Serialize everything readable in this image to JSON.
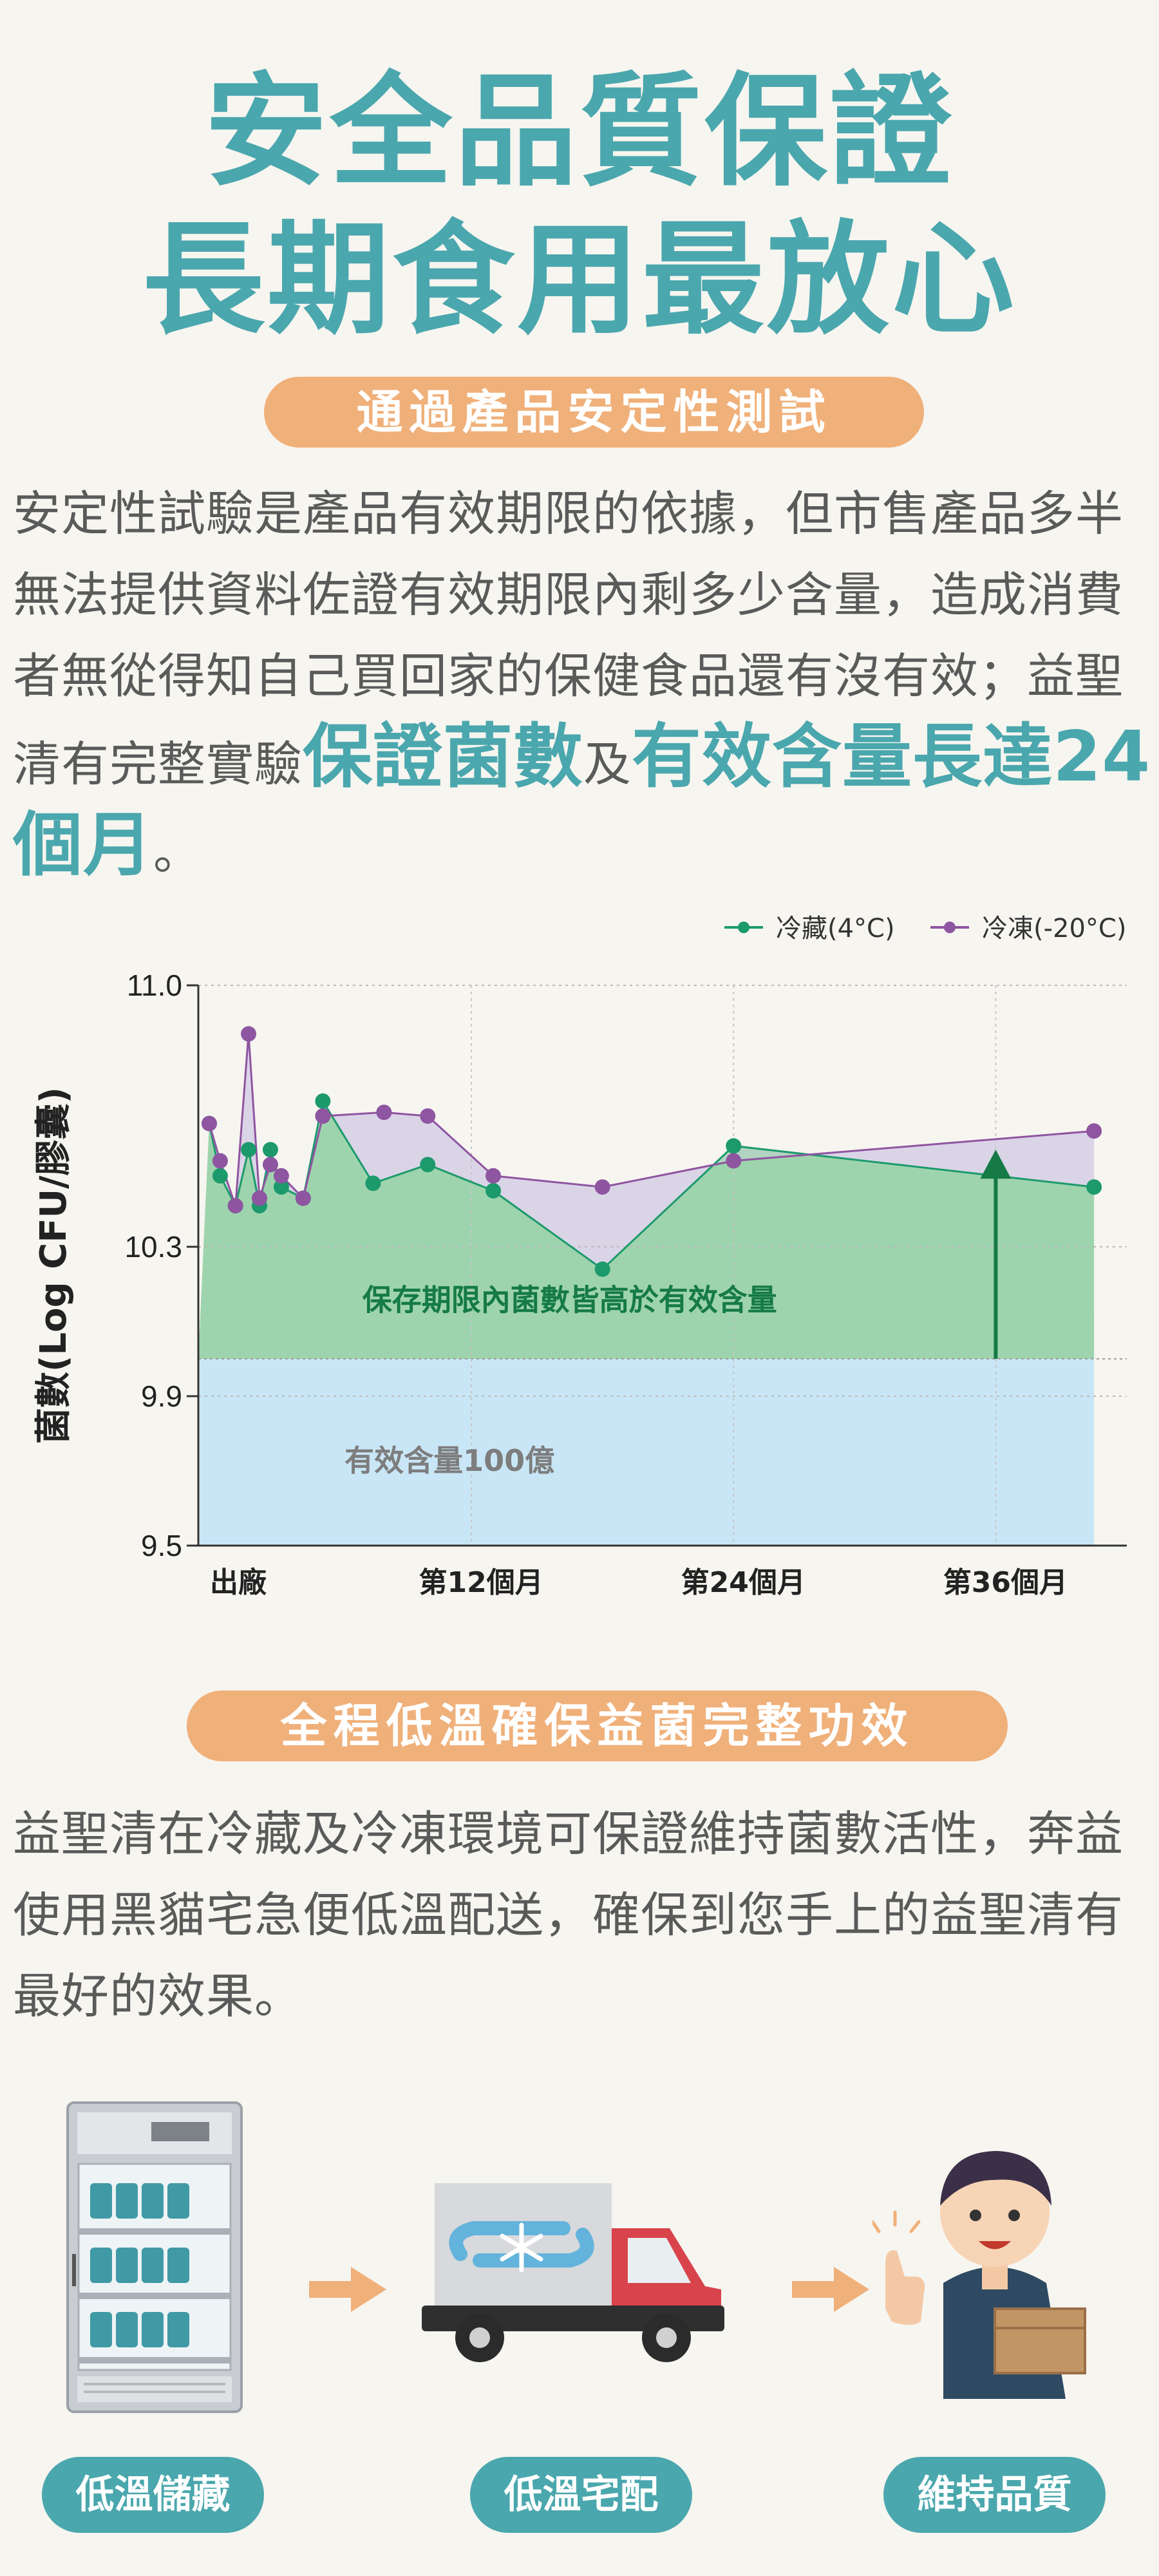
{
  "header": {
    "title_line1": "安全品質保證",
    "title_line2": "長期食用最放心"
  },
  "section1": {
    "pill": "通過產品安定性測試",
    "para_prefix": "安定性試驗是產品有效期限的依據，但市售產品多半無法提供資料佐證有效期限內剩多少含量，造成消費者無從得知自己買回家的保健食品還有沒有效；益聖清有完整實驗",
    "highlight1": "保證菌數",
    "connector": "及",
    "highlight2": "有效含量長達24個月",
    "suffix": "。"
  },
  "chart_data": {
    "type": "area",
    "ylabel": "菌數(Log CFU/膠囊)",
    "ylim": [
      9.5,
      11.0
    ],
    "y_ticks": [
      "11.0",
      "10.3",
      "9.9",
      "9.5"
    ],
    "y_tick_values": [
      11.0,
      10.3,
      9.9,
      9.5
    ],
    "x_tick_labels": [
      "出廠",
      "第12個月",
      "第24個月",
      "第36個月"
    ],
    "x_tick_months": [
      0,
      12,
      24,
      36
    ],
    "xlim": [
      -0.5,
      42
    ],
    "grid": true,
    "legend_position": "top-right",
    "threshold": {
      "value": 10.0,
      "label": "有效含量100億"
    },
    "annotation": "保存期限內菌數皆高於有效含量",
    "series": [
      {
        "name": "冷藏(4°C)",
        "color": "#1c9a6c",
        "points": [
          [
            0,
            10.63
          ],
          [
            0.5,
            10.49
          ],
          [
            1.2,
            10.41
          ],
          [
            1.8,
            10.56
          ],
          [
            2.3,
            10.41
          ],
          [
            2.8,
            10.56
          ],
          [
            3.3,
            10.46
          ],
          [
            4.3,
            10.43
          ],
          [
            5.2,
            10.69
          ],
          [
            7.5,
            10.47
          ],
          [
            10.0,
            10.52
          ],
          [
            13.0,
            10.45
          ],
          [
            18.0,
            10.24
          ],
          [
            24.0,
            10.57
          ],
          [
            40.5,
            10.46
          ]
        ]
      },
      {
        "name": "冷凍(-20°C)",
        "color": "#8e55a1",
        "points": [
          [
            0,
            10.63
          ],
          [
            0.5,
            10.53
          ],
          [
            1.2,
            10.41
          ],
          [
            1.8,
            10.87
          ],
          [
            2.3,
            10.43
          ],
          [
            2.8,
            10.52
          ],
          [
            3.3,
            10.49
          ],
          [
            4.3,
            10.43
          ],
          [
            5.2,
            10.65
          ],
          [
            8.0,
            10.66
          ],
          [
            10.0,
            10.65
          ],
          [
            13.0,
            10.49
          ],
          [
            18.0,
            10.46
          ],
          [
            24.0,
            10.53
          ],
          [
            40.5,
            10.61
          ]
        ]
      }
    ]
  },
  "section2": {
    "pill": "全程低溫確保益菌完整功效",
    "para": "益聖清在冷藏及冷凍環境可保證維持菌數活性，奔益使用黑貓宅急便低溫配送，確保到您手上的益聖清有最好的效果。"
  },
  "steps": [
    {
      "label": "低溫儲藏",
      "icon": "refrigerator-icon"
    },
    {
      "label": "低溫宅配",
      "icon": "refrigerated-truck-icon"
    },
    {
      "label": "維持品質",
      "icon": "happy-customer-icon"
    }
  ],
  "colors": {
    "brand_teal": "#4aa7ad",
    "pill_orange": "#f0b07a",
    "area_green": "#9fd4ad",
    "area_purple": "#d6d0e6",
    "area_blue": "#c9e6f6",
    "arrow_green": "#157a46"
  }
}
